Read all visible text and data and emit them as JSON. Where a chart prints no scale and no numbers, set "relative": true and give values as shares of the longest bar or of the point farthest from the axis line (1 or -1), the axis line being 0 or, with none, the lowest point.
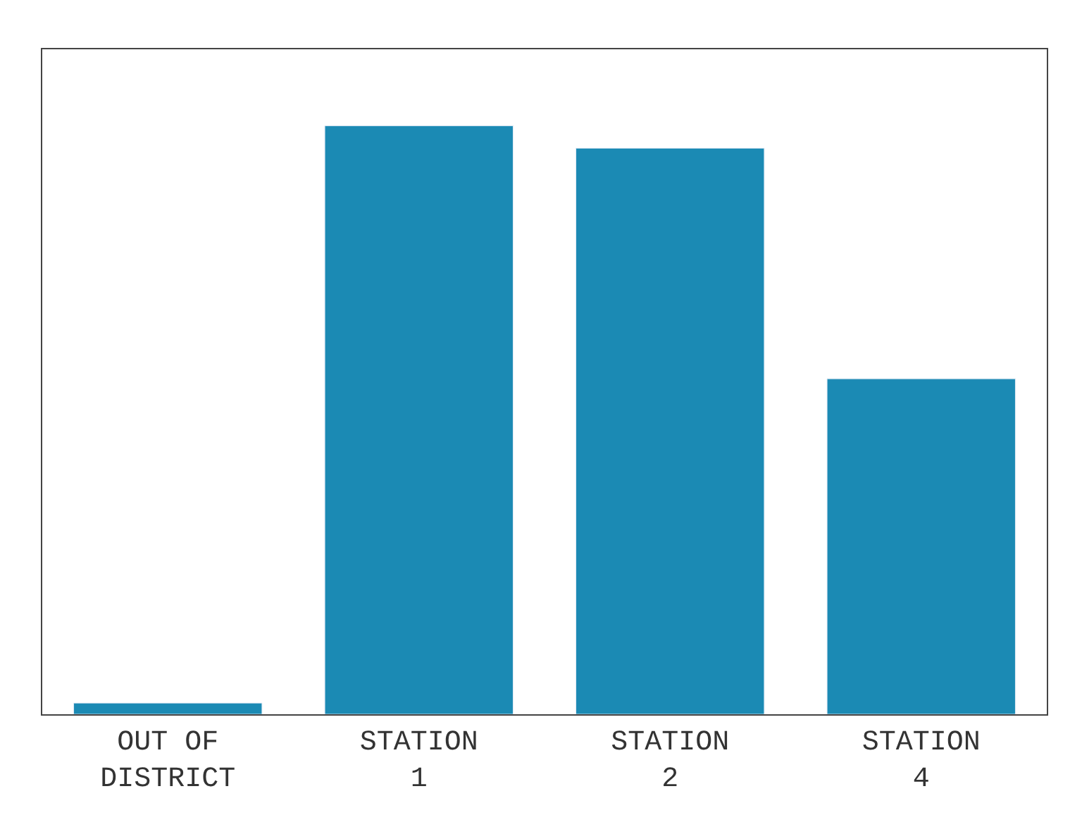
{
  "chart_data": {
    "type": "bar",
    "relative": true,
    "categories": [
      "OUT OF\nDISTRICT",
      "STATION\n1",
      "STATION\n2",
      "STATION\n4"
    ],
    "values": [
      0.019,
      1,
      0.962,
      0.57
    ],
    "color": "#1b8ab4"
  }
}
